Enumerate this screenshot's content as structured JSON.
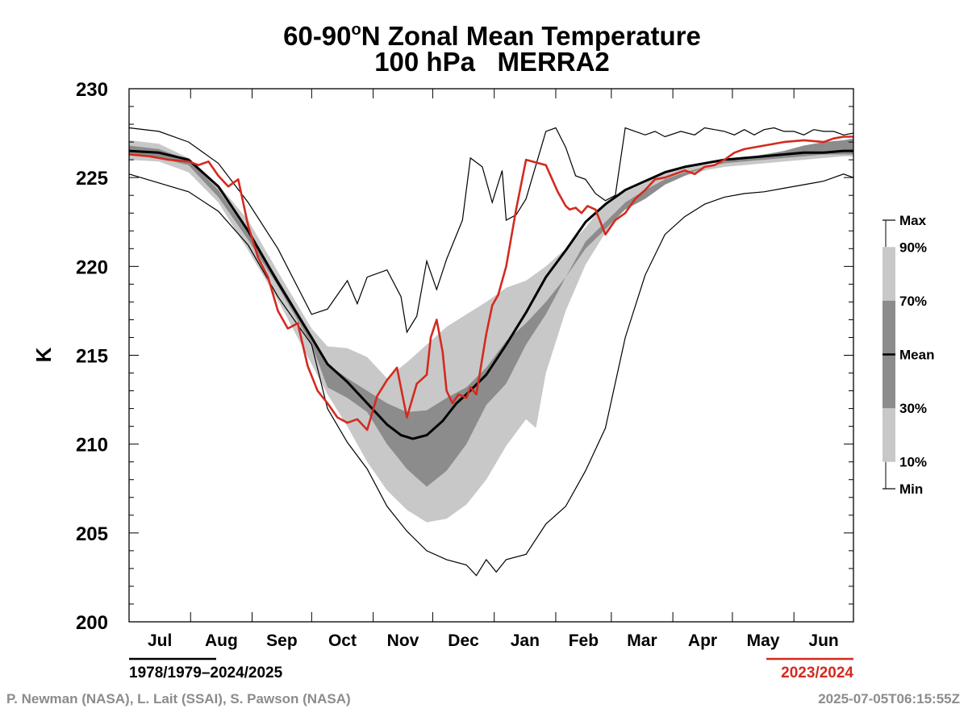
{
  "chart_data": {
    "type": "line",
    "title": "60-90°N Zonal Mean Temperature",
    "title_parts": {
      "lat": "60-90",
      "deg": "o",
      "rest": "N Zonal Mean Temperature"
    },
    "subtitle": "100 hPa   MERRA2",
    "ylabel": "K",
    "ylim": [
      200,
      230
    ],
    "yticks": [
      200,
      205,
      210,
      215,
      220,
      225,
      230
    ],
    "months": [
      "Jul",
      "Aug",
      "Sep",
      "Oct",
      "Nov",
      "Dec",
      "Jan",
      "Feb",
      "Mar",
      "Apr",
      "May",
      "Jun"
    ],
    "x_unit": "days since Jul 1",
    "x_range": [
      0,
      365
    ],
    "climatology_period": "1978/1979–2024/2025",
    "highlight_period": "2023/2024",
    "highlight_color": "#d42a1f",
    "band_colors": {
      "outer": "#c8c8c8",
      "inner": "#8c8c8c"
    },
    "legend": [
      {
        "label": "Max",
        "level": 1.0
      },
      {
        "label": "90%",
        "level": 0.9
      },
      {
        "label": "70%",
        "level": 0.7
      },
      {
        "label": "Mean",
        "level": 0.5
      },
      {
        "label": "30%",
        "level": 0.3
      },
      {
        "label": "10%",
        "level": 0.1
      },
      {
        "label": "Min",
        "level": 0.0
      }
    ],
    "series": [
      {
        "name": "Max",
        "x": [
          0,
          15,
          30,
          45,
          60,
          75,
          92,
          100,
          110,
          115,
          120,
          130,
          137,
          140,
          145,
          150,
          155,
          160,
          168,
          172,
          178,
          183,
          188,
          190,
          195,
          200,
          205,
          210,
          215,
          220,
          225,
          230,
          235,
          240,
          245,
          250,
          255,
          260,
          265,
          270,
          278,
          285,
          290,
          300,
          305,
          310,
          315,
          320,
          325,
          330,
          335,
          340,
          345,
          350,
          355,
          360,
          365
        ],
        "y": [
          227.8,
          227.6,
          227.0,
          225.8,
          223.6,
          221.0,
          217.3,
          217.6,
          219.2,
          217.9,
          219.4,
          219.8,
          218.3,
          216.3,
          217.2,
          220.3,
          218.7,
          220.4,
          222.6,
          226.1,
          225.6,
          223.6,
          225.4,
          222.6,
          222.9,
          223.8,
          225.7,
          227.6,
          227.8,
          226.7,
          225.1,
          224.9,
          224.1,
          223.7,
          224.0,
          227.8,
          227.6,
          227.4,
          227.6,
          227.3,
          227.6,
          227.4,
          227.8,
          227.6,
          227.4,
          227.7,
          227.4,
          227.7,
          227.8,
          227.6,
          227.6,
          227.4,
          227.7,
          227.6,
          227.6,
          227.4,
          227.5
        ]
      },
      {
        "name": "90%",
        "x": [
          0,
          15,
          30,
          45,
          60,
          75,
          92,
          100,
          110,
          120,
          130,
          140,
          150,
          160,
          170,
          180,
          190,
          200,
          210,
          220,
          230,
          240,
          250,
          260,
          270,
          280,
          290,
          300,
          310,
          320,
          330,
          340,
          350,
          360,
          365
        ],
        "y": [
          227.1,
          226.9,
          226.1,
          224.6,
          222.6,
          219.7,
          216.5,
          215.5,
          215.4,
          214.9,
          213.7,
          214.6,
          215.6,
          216.6,
          217.3,
          218.0,
          218.8,
          219.2,
          220.0,
          221.0,
          222.2,
          223.6,
          224.2,
          224.7,
          225.3,
          225.6,
          225.7,
          225.8,
          225.9,
          226.0,
          226.2,
          226.5,
          226.7,
          227.0,
          227.0
        ]
      },
      {
        "name": "70%",
        "x": [
          0,
          15,
          30,
          45,
          60,
          75,
          92,
          100,
          110,
          120,
          130,
          140,
          150,
          160,
          170,
          180,
          190,
          200,
          210,
          220,
          230,
          240,
          250,
          260,
          270,
          280,
          290,
          300,
          310,
          320,
          330,
          340,
          350,
          360,
          365
        ],
        "y": [
          226.8,
          226.6,
          226.0,
          224.3,
          221.9,
          219.3,
          216.1,
          214.5,
          213.7,
          213.0,
          212.3,
          211.8,
          211.9,
          212.6,
          213.2,
          214.3,
          215.8,
          216.8,
          218.0,
          219.4,
          221.0,
          222.1,
          223.2,
          223.8,
          224.6,
          225.1,
          225.6,
          225.9,
          226.1,
          226.3,
          226.5,
          226.8,
          227.0,
          227.1,
          227.2
        ]
      },
      {
        "name": "Mean",
        "x": [
          0,
          15,
          30,
          45,
          60,
          75,
          92,
          100,
          110,
          120,
          130,
          137,
          143,
          150,
          158,
          165,
          170,
          180,
          190,
          200,
          210,
          220,
          230,
          240,
          250,
          260,
          270,
          280,
          290,
          300,
          310,
          320,
          330,
          340,
          350,
          360,
          365
        ],
        "y": [
          226.5,
          226.4,
          226.0,
          224.5,
          222.0,
          219.1,
          216.0,
          214.5,
          213.5,
          212.3,
          211.1,
          210.5,
          210.3,
          210.5,
          211.3,
          212.3,
          212.8,
          213.9,
          215.6,
          217.4,
          219.4,
          220.9,
          222.5,
          223.5,
          224.3,
          224.8,
          225.3,
          225.6,
          225.8,
          226.0,
          226.1,
          226.2,
          226.3,
          226.4,
          226.4,
          226.5,
          226.5
        ]
      },
      {
        "name": "30%",
        "x": [
          0,
          15,
          30,
          45,
          60,
          75,
          92,
          100,
          110,
          120,
          130,
          140,
          150,
          160,
          170,
          180,
          190,
          200,
          210,
          220,
          230,
          240,
          250,
          260,
          270,
          280,
          290,
          300,
          310,
          320,
          330,
          340,
          350,
          360,
          365
        ],
        "y": [
          226.3,
          226.1,
          225.7,
          223.9,
          221.5,
          218.9,
          215.6,
          213.2,
          212.6,
          211.8,
          210.0,
          208.6,
          207.6,
          208.5,
          210.0,
          212.2,
          213.4,
          215.6,
          217.3,
          219.4,
          221.4,
          222.5,
          223.6,
          224.3,
          224.9,
          225.3,
          225.6,
          225.8,
          225.9,
          226.0,
          226.1,
          226.2,
          226.3,
          226.3,
          226.3
        ]
      },
      {
        "name": "10%",
        "x": [
          0,
          15,
          30,
          45,
          60,
          75,
          92,
          100,
          110,
          120,
          130,
          140,
          150,
          160,
          170,
          180,
          190,
          200,
          205,
          210,
          220,
          230,
          240,
          250,
          260,
          270,
          280,
          290,
          300,
          310,
          320,
          330,
          340,
          350,
          360,
          365
        ],
        "y": [
          226.0,
          225.9,
          225.3,
          223.6,
          220.9,
          218.1,
          214.5,
          212.8,
          211.0,
          209.0,
          207.4,
          206.3,
          205.6,
          205.8,
          206.6,
          208.0,
          209.9,
          211.4,
          210.9,
          214.0,
          217.5,
          220.1,
          221.9,
          223.3,
          224.1,
          224.7,
          225.1,
          225.4,
          225.6,
          225.7,
          225.8,
          225.9,
          226.0,
          226.1,
          226.2,
          226.2
        ]
      },
      {
        "name": "Min",
        "x": [
          0,
          15,
          30,
          45,
          60,
          75,
          92,
          100,
          110,
          120,
          130,
          140,
          150,
          160,
          170,
          175,
          180,
          185,
          190,
          200,
          210,
          220,
          230,
          240,
          250,
          260,
          270,
          280,
          290,
          300,
          310,
          320,
          330,
          340,
          350,
          355,
          360,
          365
        ],
        "y": [
          225.2,
          224.7,
          224.2,
          223.1,
          221.2,
          218.3,
          215.6,
          212.0,
          210.1,
          208.6,
          206.5,
          205.1,
          204.0,
          203.5,
          203.2,
          202.6,
          203.5,
          202.8,
          203.5,
          203.8,
          205.5,
          206.5,
          208.5,
          210.9,
          216.0,
          219.5,
          221.8,
          222.8,
          223.5,
          223.9,
          224.1,
          224.2,
          224.4,
          224.6,
          224.8,
          225.0,
          225.2,
          225.0
        ]
      },
      {
        "name": "2023/2024",
        "x": [
          0,
          10,
          20,
          30,
          35,
          40,
          45,
          50,
          55,
          60,
          65,
          70,
          75,
          80,
          85,
          90,
          95,
          100,
          105,
          110,
          115,
          120,
          125,
          130,
          135,
          140,
          145,
          150,
          152,
          155,
          158,
          160,
          163,
          166,
          170,
          172,
          175,
          180,
          183,
          186,
          190,
          195,
          200,
          210,
          216,
          220,
          222,
          225,
          228,
          231,
          235,
          240,
          245,
          250,
          255,
          260,
          265,
          270,
          275,
          280,
          285,
          290,
          295,
          300,
          305,
          310,
          320,
          330,
          340,
          350,
          355,
          360,
          365
        ],
        "y": [
          226.3,
          226.2,
          226.0,
          225.9,
          225.7,
          225.9,
          225.1,
          224.5,
          224.9,
          222.3,
          220.5,
          219.4,
          217.5,
          216.5,
          216.8,
          214.4,
          213.0,
          212.3,
          211.5,
          211.2,
          211.4,
          210.8,
          212.7,
          213.6,
          214.3,
          211.5,
          213.4,
          213.9,
          216.0,
          217.0,
          215.2,
          213.0,
          212.3,
          212.8,
          212.6,
          213.2,
          212.8,
          216.2,
          217.8,
          218.4,
          220.0,
          223.2,
          226.0,
          225.7,
          224.2,
          223.4,
          223.2,
          223.3,
          223.0,
          223.4,
          223.2,
          221.8,
          222.6,
          223.0,
          223.8,
          224.3,
          224.9,
          225.0,
          225.2,
          225.4,
          225.2,
          225.6,
          225.7,
          226.0,
          226.4,
          226.6,
          226.8,
          227.0,
          227.1,
          227.0,
          227.2,
          227.3,
          227.3
        ]
      }
    ]
  },
  "footer": {
    "left": "P. Newman (NASA), L. Lait (SSAI), S. Pawson (NASA)",
    "right": "2025-07-05T06:15:55Z"
  }
}
